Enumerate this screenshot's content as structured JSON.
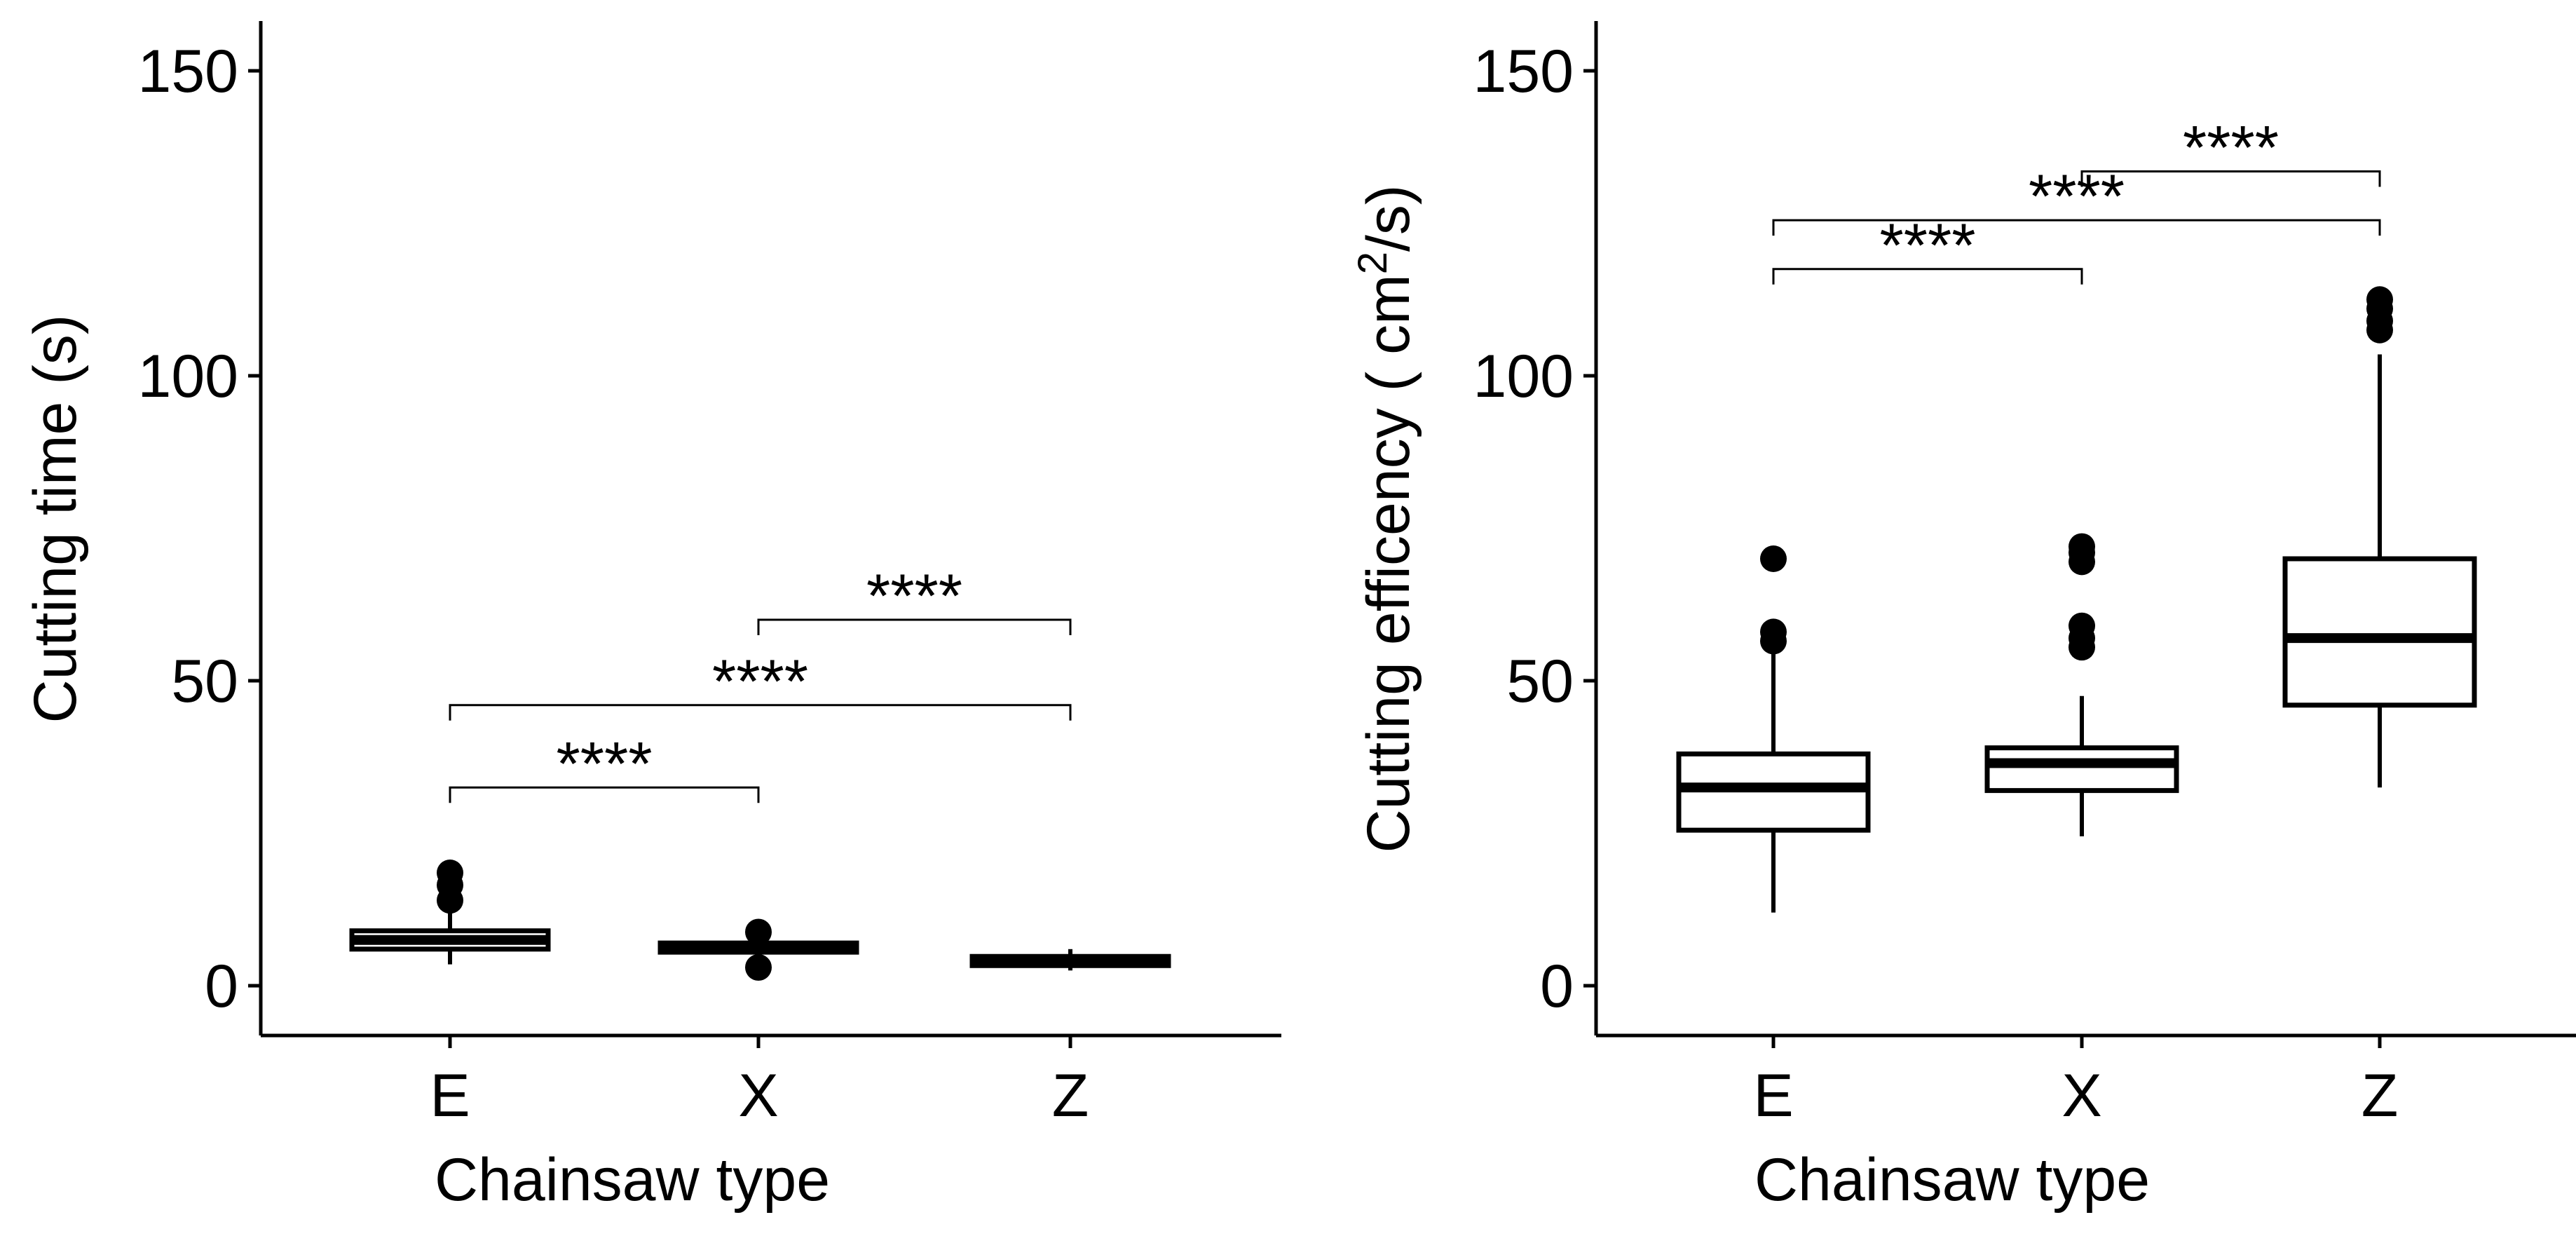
{
  "chart_data": [
    {
      "type": "box",
      "xlabel": "Chainsaw type",
      "ylabel": "Cutting time (s)",
      "ylim": [
        -7,
        157
      ],
      "yticks": [
        0,
        50,
        100,
        150
      ],
      "ytick_labels": [
        "0",
        "50",
        "100",
        "150"
      ],
      "categories": [
        "E",
        "X",
        "Z"
      ],
      "boxes": [
        {
          "category": "E",
          "whisker_low": 3.5,
          "q1": 6,
          "median": 7.5,
          "q3": 9,
          "whisker_high": 12.5,
          "outliers": [
            14,
            16.5,
            18.5
          ]
        },
        {
          "category": "X",
          "whisker_low": 4.5,
          "q1": 5.5,
          "median": 6.3,
          "q3": 7,
          "whisker_high": 7.8,
          "outliers": [
            3,
            8.8
          ]
        },
        {
          "category": "Z",
          "whisker_low": 2.5,
          "q1": 3.3,
          "median": 4,
          "q3": 4.8,
          "whisker_high": 6,
          "outliers": []
        }
      ],
      "comparisons": [
        {
          "from": "E",
          "to": "X",
          "y": 32.5,
          "label": "****"
        },
        {
          "from": "E",
          "to": "Z",
          "y": 46,
          "label": "****"
        },
        {
          "from": "X",
          "to": "Z",
          "y": 60,
          "label": "****"
        }
      ]
    },
    {
      "type": "box",
      "xlabel": "Chainsaw type",
      "ylabel": "Cutting efficency ( cm",
      "ylabel_sup": "2",
      "ylabel_suffix": "/s)",
      "ylim": [
        -7,
        157
      ],
      "yticks": [
        0,
        50,
        100,
        150
      ],
      "ytick_labels": [
        "0",
        "50",
        "100",
        "150"
      ],
      "categories": [
        "E",
        "X",
        "Z"
      ],
      "boxes": [
        {
          "category": "E",
          "whisker_low": 12,
          "q1": 25.5,
          "median": 32.5,
          "q3": 38,
          "whisker_high": 55,
          "outliers": [
            56.5,
            58,
            70
          ]
        },
        {
          "category": "X",
          "whisker_low": 24.5,
          "q1": 32,
          "median": 36.5,
          "q3": 39,
          "whisker_high": 47.5,
          "outliers": [
            55.5,
            57,
            59,
            69.5,
            71,
            72
          ]
        },
        {
          "category": "Z",
          "whisker_low": 32.5,
          "q1": 46,
          "median": 57,
          "q3": 70,
          "whisker_high": 103.5,
          "outliers": [
            107.5,
            109,
            111,
            112.5
          ]
        }
      ],
      "comparisons": [
        {
          "from": "E",
          "to": "X",
          "y": 117.5,
          "label": "****"
        },
        {
          "from": "E",
          "to": "Z",
          "y": 125.5,
          "label": "****"
        },
        {
          "from": "X",
          "to": "Z",
          "y": 133.5,
          "label": "****"
        }
      ]
    }
  ]
}
